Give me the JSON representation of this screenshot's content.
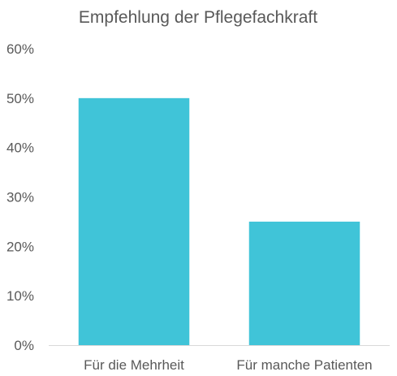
{
  "chart_data": {
    "type": "bar",
    "title": "Empfehlung der Pflegefachkraft",
    "xlabel": "",
    "ylabel": "",
    "categories": [
      "Für die Mehrheit",
      "Für manche Patienten"
    ],
    "values": [
      50,
      25
    ],
    "value_format": "percent",
    "ylim": [
      0,
      60
    ],
    "yticks": [
      0,
      10,
      20,
      30,
      40,
      50,
      60
    ],
    "ytick_labels": [
      "0%",
      "10%",
      "20%",
      "30%",
      "40%",
      "50%",
      "60%"
    ],
    "grid": false,
    "legend": "none",
    "bar_color": "#40C4D8",
    "axis_color": "#D9D9D9",
    "text_color": "#595959"
  }
}
